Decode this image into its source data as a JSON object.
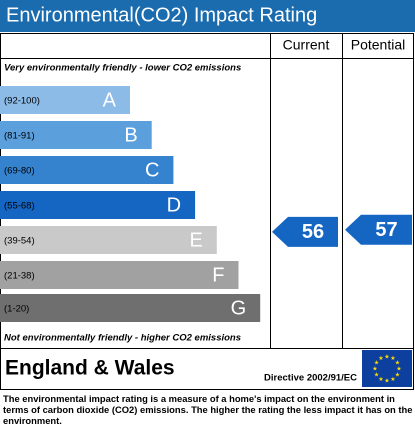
{
  "chart_data": {
    "type": "rating",
    "title": "Environmental(CO2) Impact Rating",
    "columns": [
      "Current",
      "Potential"
    ],
    "top_label": "Very environmentally friendly - lower CO2 emissions",
    "bottom_label": "Not environmentally friendly - higher CO2 emissions",
    "bands": [
      {
        "letter": "A",
        "range": "(92-100)",
        "color": "#8cbbe8"
      },
      {
        "letter": "B",
        "range": "(81-91)",
        "color": "#5b9fdc"
      },
      {
        "letter": "C",
        "range": "(69-80)",
        "color": "#3583cf"
      },
      {
        "letter": "D",
        "range": "(55-68)",
        "color": "#1466c2"
      },
      {
        "letter": "E",
        "range": "(39-54)",
        "color": "#c9c9c9"
      },
      {
        "letter": "F",
        "range": "(21-38)",
        "color": "#a1a1a1"
      },
      {
        "letter": "G",
        "range": "(1-20)",
        "color": "#6f6f6f"
      }
    ],
    "current": 56,
    "potential": 57,
    "arrow_color": "#1466c2",
    "region": "England & Wales",
    "directive": "Directive 2002/91/EC",
    "footnote": "The environmental impact rating is a measure of a home's impact on the environment in terms of carbon dioxide (CO2) emissions. The higher the rating the less impact it has on the environment."
  }
}
